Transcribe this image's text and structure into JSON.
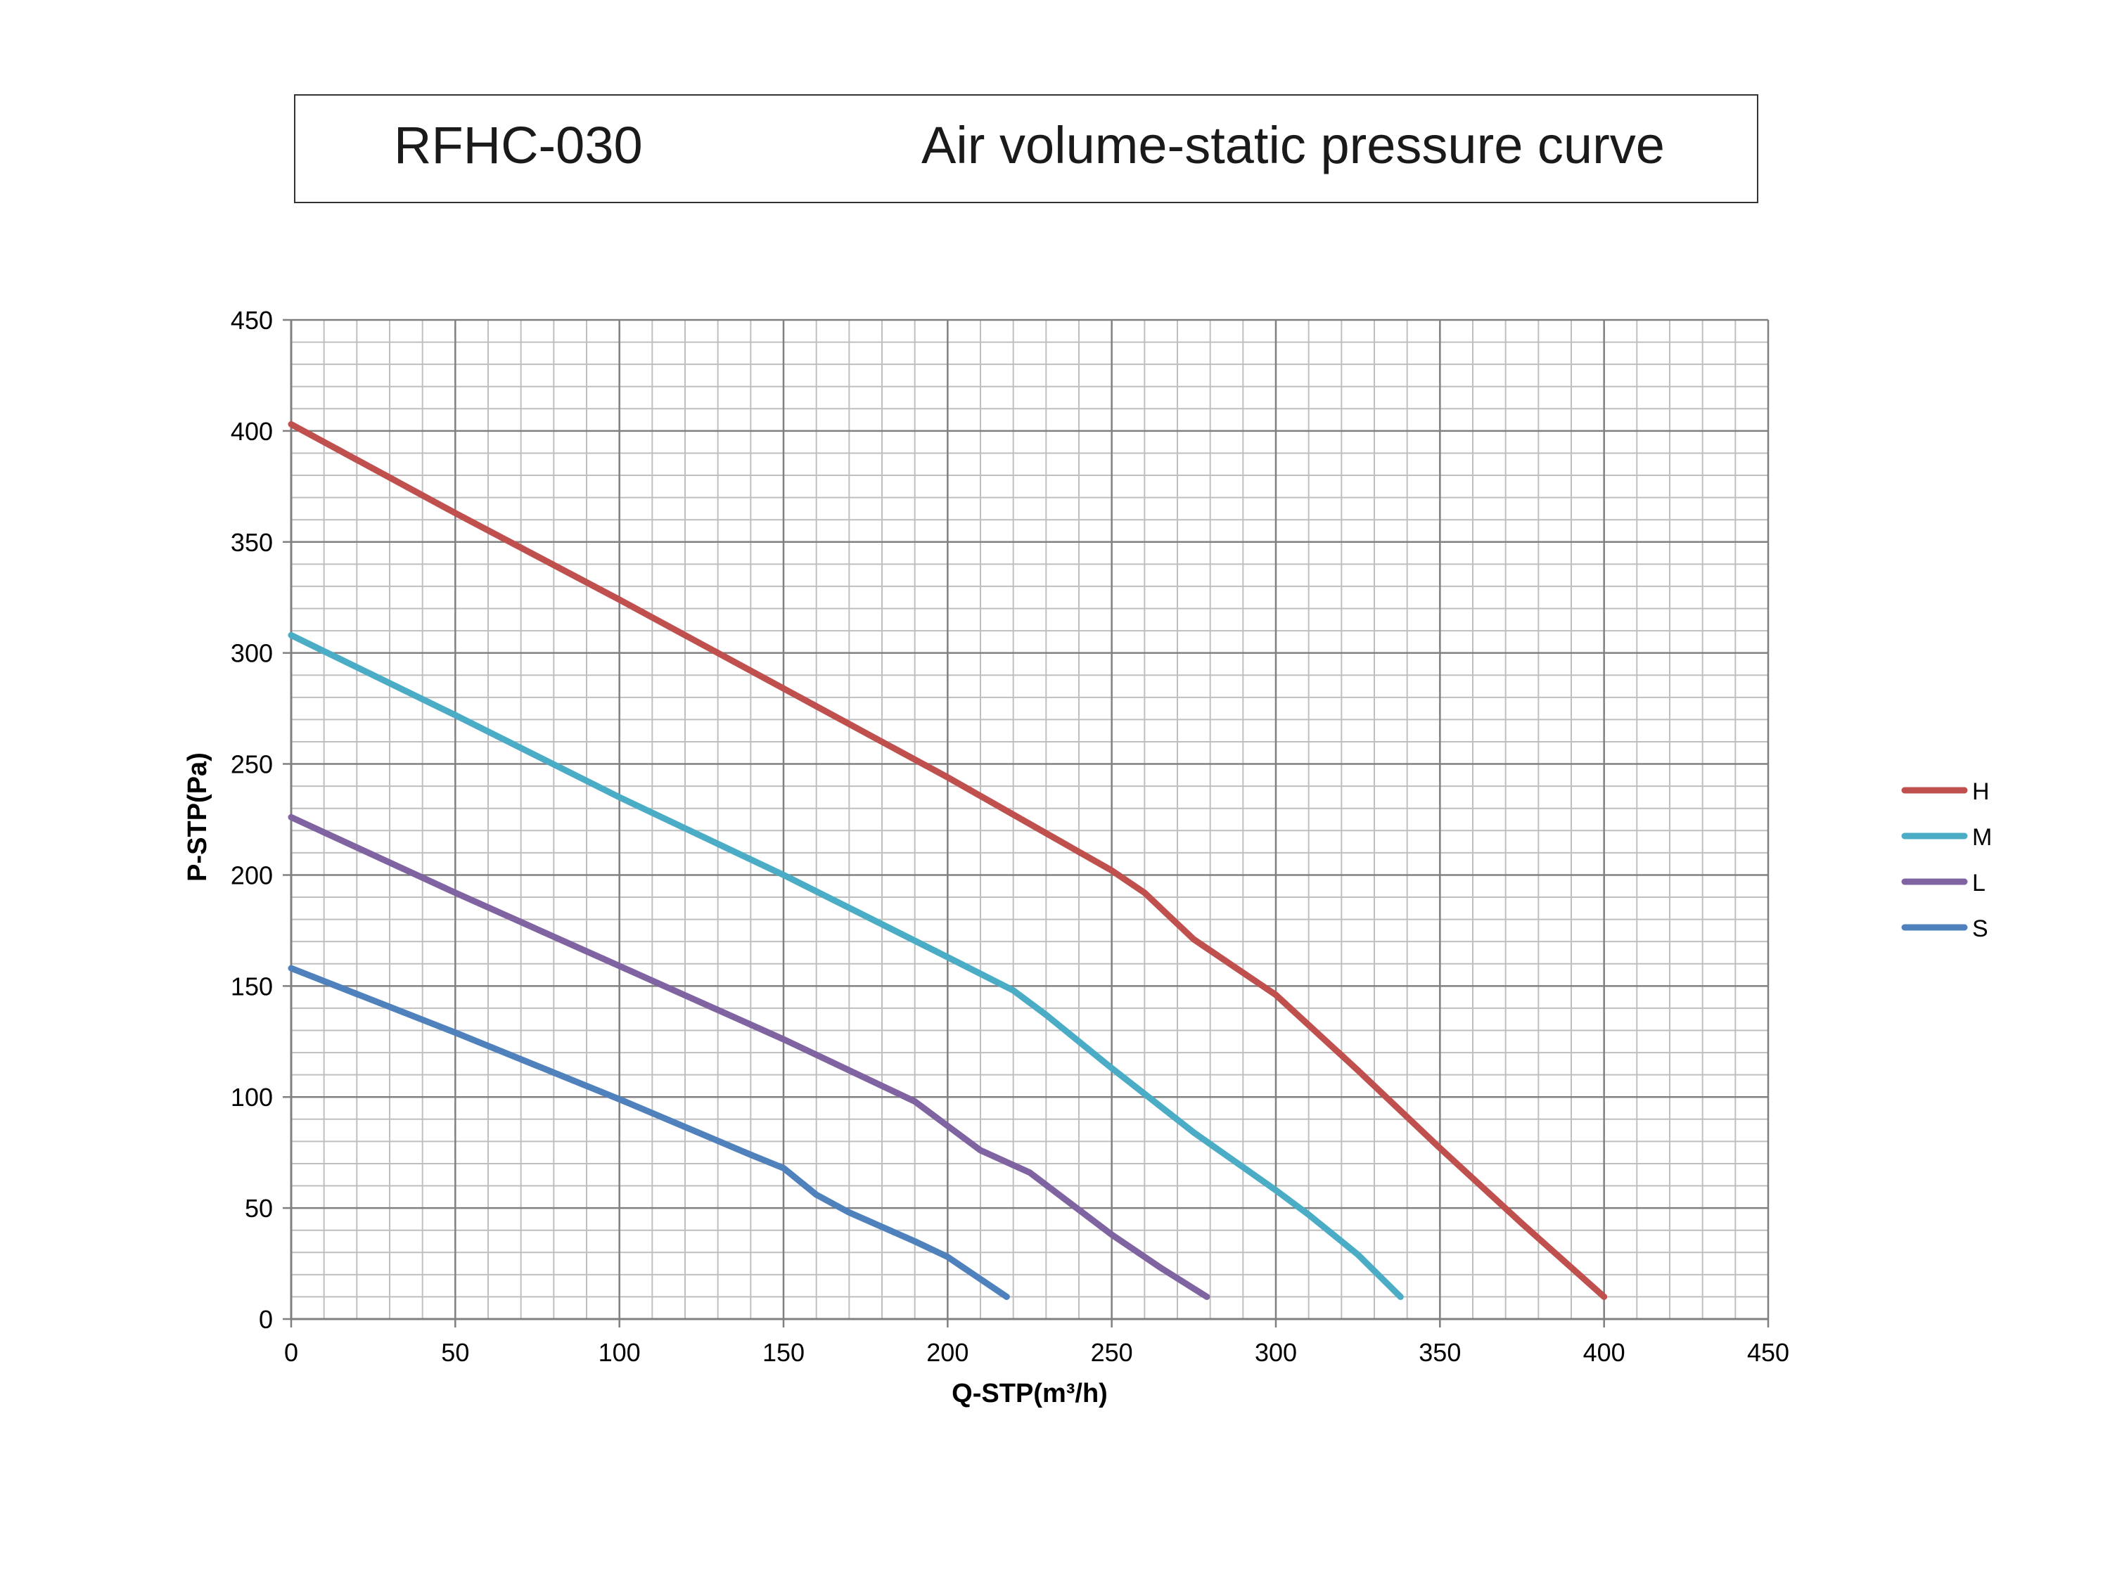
{
  "header": {
    "model": "RFHC-030",
    "title": "Air volume-static pressure curve"
  },
  "chart_data": {
    "type": "line",
    "title": "Air volume-static pressure curve",
    "xlabel": "Q-STP(m³/h)",
    "ylabel": "P-STP(Pa)",
    "xlim": [
      0,
      450
    ],
    "ylim": [
      0,
      450
    ],
    "x_ticks": [
      0,
      50,
      100,
      150,
      200,
      250,
      300,
      350,
      400,
      450
    ],
    "y_ticks": [
      0,
      50,
      100,
      150,
      200,
      250,
      300,
      350,
      400,
      450
    ],
    "grid": true,
    "legend_position": "right",
    "series": [
      {
        "name": "H",
        "color": "#C0504D",
        "points": [
          [
            0,
            403
          ],
          [
            50,
            363
          ],
          [
            100,
            324
          ],
          [
            150,
            284
          ],
          [
            200,
            244
          ],
          [
            250,
            202
          ],
          [
            260,
            192
          ],
          [
            275,
            171
          ],
          [
            300,
            146
          ],
          [
            325,
            112
          ],
          [
            350,
            77
          ],
          [
            375,
            43
          ],
          [
            400,
            10
          ]
        ]
      },
      {
        "name": "M",
        "color": "#4BACC6",
        "points": [
          [
            0,
            308
          ],
          [
            50,
            272
          ],
          [
            100,
            235
          ],
          [
            150,
            200
          ],
          [
            200,
            163
          ],
          [
            220,
            148
          ],
          [
            230,
            137
          ],
          [
            250,
            113
          ],
          [
            275,
            84
          ],
          [
            300,
            58
          ],
          [
            310,
            47
          ],
          [
            325,
            29
          ],
          [
            338,
            10
          ]
        ]
      },
      {
        "name": "L",
        "color": "#8064A2",
        "points": [
          [
            0,
            226
          ],
          [
            50,
            192
          ],
          [
            100,
            159
          ],
          [
            150,
            126
          ],
          [
            190,
            98
          ],
          [
            200,
            87
          ],
          [
            210,
            76
          ],
          [
            225,
            66
          ],
          [
            250,
            38
          ],
          [
            265,
            23
          ],
          [
            279,
            10
          ]
        ]
      },
      {
        "name": "S",
        "color": "#4F81BD",
        "points": [
          [
            0,
            158
          ],
          [
            50,
            129
          ],
          [
            100,
            99
          ],
          [
            140,
            74
          ],
          [
            150,
            68
          ],
          [
            160,
            56
          ],
          [
            170,
            48
          ],
          [
            190,
            35
          ],
          [
            200,
            28
          ],
          [
            210,
            18
          ],
          [
            218,
            10
          ]
        ]
      }
    ]
  }
}
